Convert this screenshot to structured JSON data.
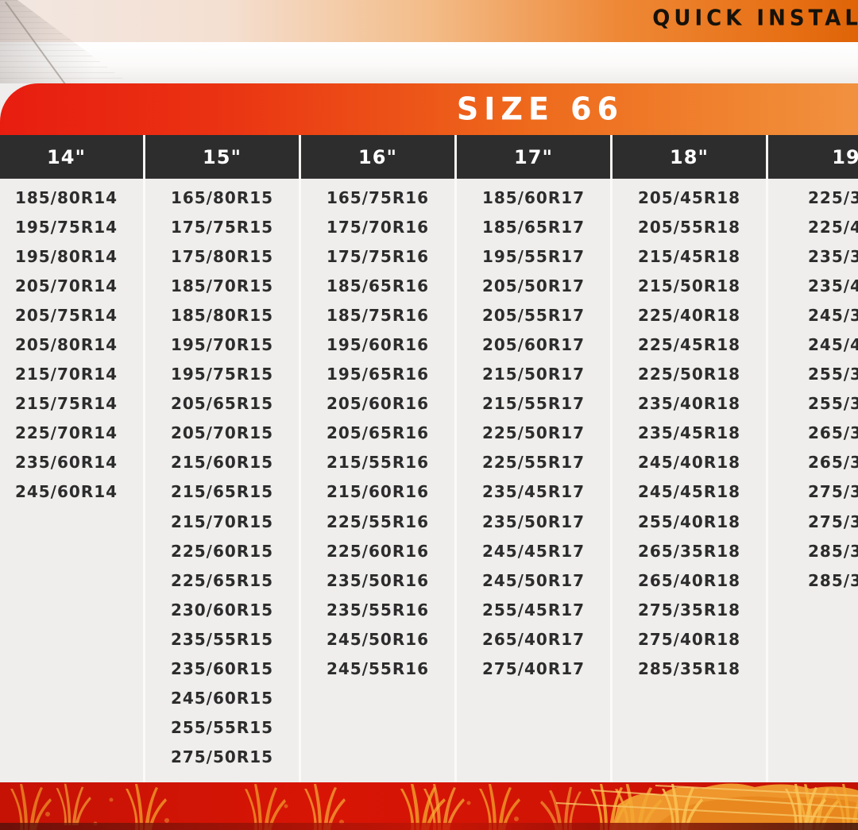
{
  "header": {
    "top_banner_text": "QUICK INSTAL",
    "size_banner_text": "SIZE 66"
  },
  "table": {
    "columns": [
      {
        "key": "14",
        "label": "14\"",
        "sizes": [
          "185/80R14",
          "195/75R14",
          "195/80R14",
          "205/70R14",
          "205/75R14",
          "205/80R14",
          "215/70R14",
          "215/75R14",
          "225/70R14",
          "235/60R14",
          "245/60R14"
        ]
      },
      {
        "key": "15",
        "label": "15\"",
        "sizes": [
          "165/80R15",
          "175/75R15",
          "175/80R15",
          "185/70R15",
          "185/80R15",
          "195/70R15",
          "195/75R15",
          "205/65R15",
          "205/70R15",
          "215/60R15",
          "215/65R15",
          "215/70R15",
          "225/60R15",
          "225/65R15",
          "230/60R15",
          "235/55R15",
          "235/60R15",
          "245/60R15",
          "255/55R15",
          "275/50R15"
        ]
      },
      {
        "key": "16",
        "label": "16\"",
        "sizes": [
          "165/75R16",
          "175/70R16",
          "175/75R16",
          "185/65R16",
          "185/75R16",
          "195/60R16",
          "195/65R16",
          "205/60R16",
          "205/65R16",
          "215/55R16",
          "215/60R16",
          "225/55R16",
          "225/60R16",
          "235/50R16",
          "235/55R16",
          "245/50R16",
          "245/55R16"
        ]
      },
      {
        "key": "17",
        "label": "17\"",
        "sizes": [
          "185/60R17",
          "185/65R17",
          "195/55R17",
          "205/50R17",
          "205/55R17",
          "205/60R17",
          "215/50R17",
          "215/55R17",
          "225/50R17",
          "225/55R17",
          "235/45R17",
          "235/50R17",
          "245/45R17",
          "245/50R17",
          "255/45R17",
          "265/40R17",
          "275/40R17"
        ]
      },
      {
        "key": "18",
        "label": "18\"",
        "sizes": [
          "205/45R18",
          "205/55R18",
          "215/45R18",
          "215/50R18",
          "225/40R18",
          "225/45R18",
          "225/50R18",
          "235/40R18",
          "235/45R18",
          "245/40R18",
          "245/45R18",
          "255/40R18",
          "265/35R18",
          "265/40R18",
          "275/35R18",
          "275/40R18",
          "285/35R18"
        ]
      },
      {
        "key": "19",
        "label": "19",
        "clipped": true,
        "sizes": [
          "225/3",
          "225/4",
          "235/3",
          "235/4",
          "245/3",
          "245/4",
          "255/3",
          "255/3",
          "265/3",
          "265/3",
          "275/3",
          "275/3",
          "285/3",
          "285/3"
        ]
      }
    ]
  },
  "colors": {
    "banner_red": "#e81d10",
    "banner_orange": "#f19140",
    "top_band_orange": "#e76f14",
    "header_dark": "#2d2d2e",
    "body_bg": "#efeeec",
    "divider_white": "#fbfaf8",
    "text_dark": "#2c2c2c",
    "art_red": "#d01305",
    "art_gold": "#f5a42f"
  }
}
